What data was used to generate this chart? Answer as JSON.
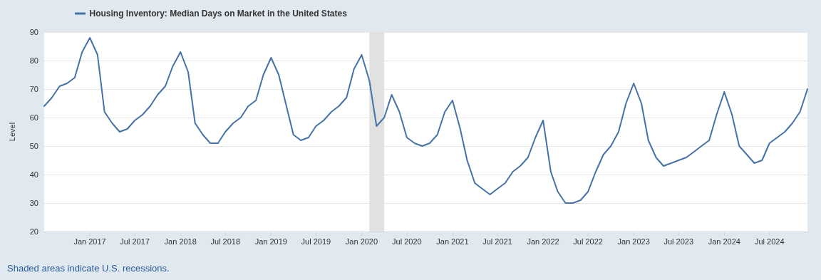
{
  "chart_data": {
    "type": "line",
    "ylabel": "Level",
    "legend": "top left",
    "grid": "y",
    "marker": "none",
    "line_style": "solid",
    "annotations": [
      "Shaded areas indicate U.S. recessions."
    ],
    "xlim": [
      "2016-07",
      "2024-12"
    ],
    "xticks": [
      {
        "value": "2017-01",
        "label": "Jan 2017"
      },
      {
        "value": "2017-07",
        "label": "Jul 2017"
      },
      {
        "value": "2018-01",
        "label": "Jan 2018"
      },
      {
        "value": "2018-07",
        "label": "Jul 2018"
      },
      {
        "value": "2019-01",
        "label": "Jan 2019"
      },
      {
        "value": "2019-07",
        "label": "Jul 2019"
      },
      {
        "value": "2020-01",
        "label": "Jan 2020"
      },
      {
        "value": "2020-07",
        "label": "Jul 2020"
      },
      {
        "value": "2021-01",
        "label": "Jan 2021"
      },
      {
        "value": "2021-07",
        "label": "Jul 2021"
      },
      {
        "value": "2022-01",
        "label": "Jan 2022"
      },
      {
        "value": "2022-07",
        "label": "Jul 2022"
      },
      {
        "value": "2023-01",
        "label": "Jan 2023"
      },
      {
        "value": "2023-07",
        "label": "Jul 2023"
      },
      {
        "value": "2024-01",
        "label": "Jan 2024"
      },
      {
        "value": "2024-07",
        "label": "Jul 2024"
      }
    ],
    "ylim": [
      20,
      90
    ],
    "yticks": [
      20,
      30,
      40,
      50,
      60,
      70,
      80,
      90
    ],
    "bands": [
      {
        "axis": "x",
        "from": "2020-02",
        "to": "2020-04",
        "color": "#e1e1e1"
      }
    ],
    "x": [
      "2016-07",
      "2016-08",
      "2016-09",
      "2016-10",
      "2016-11",
      "2016-12",
      "2017-01",
      "2017-02",
      "2017-03",
      "2017-04",
      "2017-05",
      "2017-06",
      "2017-07",
      "2017-08",
      "2017-09",
      "2017-10",
      "2017-11",
      "2017-12",
      "2018-01",
      "2018-02",
      "2018-03",
      "2018-04",
      "2018-05",
      "2018-06",
      "2018-07",
      "2018-08",
      "2018-09",
      "2018-10",
      "2018-11",
      "2018-12",
      "2019-01",
      "2019-02",
      "2019-03",
      "2019-04",
      "2019-05",
      "2019-06",
      "2019-07",
      "2019-08",
      "2019-09",
      "2019-10",
      "2019-11",
      "2019-12",
      "2020-01",
      "2020-02",
      "2020-03",
      "2020-04",
      "2020-05",
      "2020-06",
      "2020-07",
      "2020-08",
      "2020-09",
      "2020-10",
      "2020-11",
      "2020-12",
      "2021-01",
      "2021-02",
      "2021-03",
      "2021-04",
      "2021-05",
      "2021-06",
      "2021-07",
      "2021-08",
      "2021-09",
      "2021-10",
      "2021-11",
      "2021-12",
      "2022-01",
      "2022-02",
      "2022-03",
      "2022-04",
      "2022-05",
      "2022-06",
      "2022-07",
      "2022-08",
      "2022-09",
      "2022-10",
      "2022-11",
      "2022-12",
      "2023-01",
      "2023-02",
      "2023-03",
      "2023-04",
      "2023-05",
      "2023-06",
      "2023-07",
      "2023-08",
      "2023-09",
      "2023-10",
      "2023-11",
      "2023-12",
      "2024-01",
      "2024-02",
      "2024-03",
      "2024-04",
      "2024-05",
      "2024-06",
      "2024-07",
      "2024-08",
      "2024-09",
      "2024-10",
      "2024-11",
      "2024-12"
    ],
    "series": [
      {
        "name": "Housing Inventory: Median Days on Market in the United States",
        "color": "#4572a7",
        "values": [
          64,
          67,
          71,
          72,
          74,
          83,
          88,
          82,
          62,
          58,
          55,
          56,
          59,
          61,
          64,
          68,
          71,
          78,
          83,
          76,
          58,
          54,
          51,
          51,
          55,
          58,
          60,
          64,
          66,
          75,
          81,
          75,
          65,
          54,
          52,
          53,
          57,
          59,
          62,
          64,
          67,
          77,
          82,
          73,
          57,
          60,
          68,
          62,
          53,
          51,
          50,
          51,
          54,
          62,
          66,
          56,
          45,
          37,
          35,
          33,
          35,
          37,
          41,
          43,
          46,
          53,
          59,
          41,
          34,
          30,
          30,
          31,
          34,
          41,
          47,
          50,
          55,
          65,
          72,
          65,
          52,
          46,
          43,
          44,
          45,
          46,
          48,
          50,
          52,
          61,
          69,
          61,
          50,
          47,
          44,
          45,
          51,
          53,
          55,
          58,
          62,
          70
        ]
      }
    ]
  }
}
